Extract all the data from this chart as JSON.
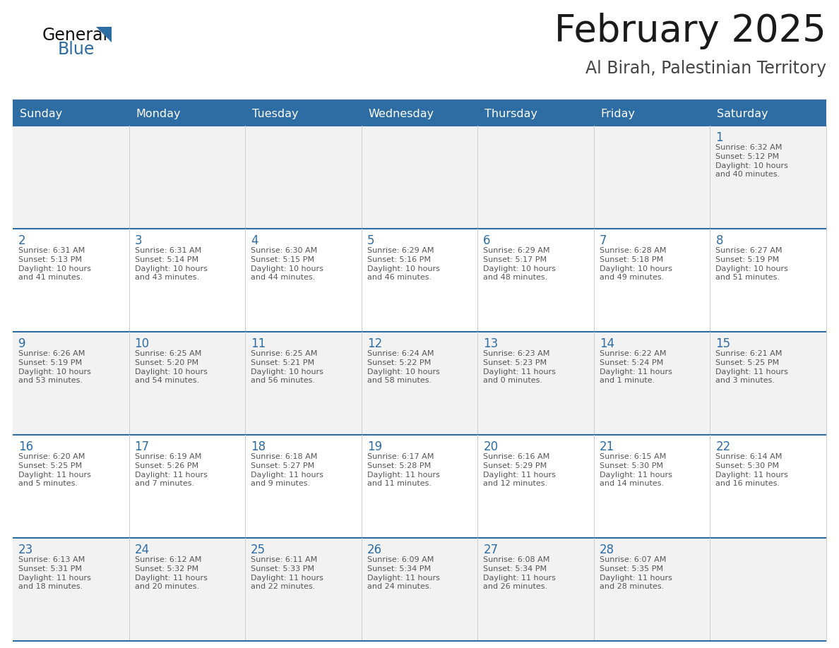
{
  "title": "February 2025",
  "subtitle": "Al Birah, Palestinian Territory",
  "header_bg": "#2E6DA4",
  "header_text": "#FFFFFF",
  "cell_bg_odd": "#F2F2F2",
  "cell_bg_even": "#FFFFFF",
  "border_color": "#2E6DA4",
  "day_number_color": "#2E6DA4",
  "info_text_color": "#555555",
  "title_color": "#1a1a1a",
  "subtitle_color": "#444444",
  "days_of_week": [
    "Sunday",
    "Monday",
    "Tuesday",
    "Wednesday",
    "Thursday",
    "Friday",
    "Saturday"
  ],
  "calendar_data": [
    [
      null,
      null,
      null,
      null,
      null,
      null,
      1
    ],
    [
      2,
      3,
      4,
      5,
      6,
      7,
      8
    ],
    [
      9,
      10,
      11,
      12,
      13,
      14,
      15
    ],
    [
      16,
      17,
      18,
      19,
      20,
      21,
      22
    ],
    [
      23,
      24,
      25,
      26,
      27,
      28,
      null
    ]
  ],
  "sunrise_data": {
    "1": "6:32 AM",
    "2": "6:31 AM",
    "3": "6:31 AM",
    "4": "6:30 AM",
    "5": "6:29 AM",
    "6": "6:29 AM",
    "7": "6:28 AM",
    "8": "6:27 AM",
    "9": "6:26 AM",
    "10": "6:25 AM",
    "11": "6:25 AM",
    "12": "6:24 AM",
    "13": "6:23 AM",
    "14": "6:22 AM",
    "15": "6:21 AM",
    "16": "6:20 AM",
    "17": "6:19 AM",
    "18": "6:18 AM",
    "19": "6:17 AM",
    "20": "6:16 AM",
    "21": "6:15 AM",
    "22": "6:14 AM",
    "23": "6:13 AM",
    "24": "6:12 AM",
    "25": "6:11 AM",
    "26": "6:09 AM",
    "27": "6:08 AM",
    "28": "6:07 AM"
  },
  "sunset_data": {
    "1": "5:12 PM",
    "2": "5:13 PM",
    "3": "5:14 PM",
    "4": "5:15 PM",
    "5": "5:16 PM",
    "6": "5:17 PM",
    "7": "5:18 PM",
    "8": "5:19 PM",
    "9": "5:19 PM",
    "10": "5:20 PM",
    "11": "5:21 PM",
    "12": "5:22 PM",
    "13": "5:23 PM",
    "14": "5:24 PM",
    "15": "5:25 PM",
    "16": "5:25 PM",
    "17": "5:26 PM",
    "18": "5:27 PM",
    "19": "5:28 PM",
    "20": "5:29 PM",
    "21": "5:30 PM",
    "22": "5:30 PM",
    "23": "5:31 PM",
    "24": "5:32 PM",
    "25": "5:33 PM",
    "26": "5:34 PM",
    "27": "5:34 PM",
    "28": "5:35 PM"
  },
  "daylight_data": {
    "1": [
      "10 hours",
      "and 40 minutes."
    ],
    "2": [
      "10 hours",
      "and 41 minutes."
    ],
    "3": [
      "10 hours",
      "and 43 minutes."
    ],
    "4": [
      "10 hours",
      "and 44 minutes."
    ],
    "5": [
      "10 hours",
      "and 46 minutes."
    ],
    "6": [
      "10 hours",
      "and 48 minutes."
    ],
    "7": [
      "10 hours",
      "and 49 minutes."
    ],
    "8": [
      "10 hours",
      "and 51 minutes."
    ],
    "9": [
      "10 hours",
      "and 53 minutes."
    ],
    "10": [
      "10 hours",
      "and 54 minutes."
    ],
    "11": [
      "10 hours",
      "and 56 minutes."
    ],
    "12": [
      "10 hours",
      "and 58 minutes."
    ],
    "13": [
      "11 hours",
      "and 0 minutes."
    ],
    "14": [
      "11 hours",
      "and 1 minute."
    ],
    "15": [
      "11 hours",
      "and 3 minutes."
    ],
    "16": [
      "11 hours",
      "and 5 minutes."
    ],
    "17": [
      "11 hours",
      "and 7 minutes."
    ],
    "18": [
      "11 hours",
      "and 9 minutes."
    ],
    "19": [
      "11 hours",
      "and 11 minutes."
    ],
    "20": [
      "11 hours",
      "and 12 minutes."
    ],
    "21": [
      "11 hours",
      "and 14 minutes."
    ],
    "22": [
      "11 hours",
      "and 16 minutes."
    ],
    "23": [
      "11 hours",
      "and 18 minutes."
    ],
    "24": [
      "11 hours",
      "and 20 minutes."
    ],
    "25": [
      "11 hours",
      "and 22 minutes."
    ],
    "26": [
      "11 hours",
      "and 24 minutes."
    ],
    "27": [
      "11 hours",
      "and 26 minutes."
    ],
    "28": [
      "11 hours",
      "and 28 minutes."
    ]
  }
}
